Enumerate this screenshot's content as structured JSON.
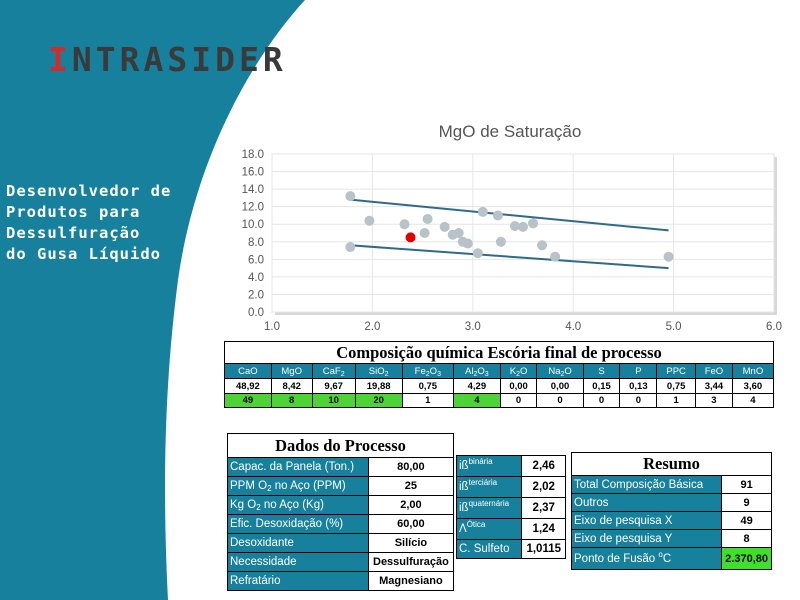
{
  "brand": {
    "first_letter": "I",
    "rest": "NTRASIDER"
  },
  "tagline": [
    "Desenvolvedor de",
    "Produtos para",
    "Dessulfuração",
    "do Gusa Líquido"
  ],
  "colors": {
    "teal": "#17819d",
    "brand_red": "#d42a2a",
    "highlight_green": "#4dd335",
    "point_gray": "#b7c3c9",
    "point_red": "#e00000",
    "line": "#2e6b8a"
  },
  "chart_data": {
    "type": "scatter",
    "title": "MgO de Saturação",
    "xlim": [
      1.0,
      6.0
    ],
    "ylim": [
      0.0,
      18.0
    ],
    "x_ticks": [
      "1.0",
      "2.0",
      "3.0",
      "4.0",
      "5.0",
      "6.0"
    ],
    "y_ticks": [
      "0.0",
      "2.0",
      "4.0",
      "6.0",
      "8.0",
      "10.0",
      "12.0",
      "14.0",
      "16.0",
      "18.0"
    ],
    "points": [
      [
        1.78,
        13.2
      ],
      [
        1.97,
        10.4
      ],
      [
        2.32,
        10.0
      ],
      [
        2.52,
        9.0
      ],
      [
        2.55,
        10.6
      ],
      [
        2.72,
        9.7
      ],
      [
        2.8,
        8.8
      ],
      [
        2.86,
        9.0
      ],
      [
        2.9,
        8.0
      ],
      [
        2.95,
        7.8
      ],
      [
        3.05,
        6.7
      ],
      [
        3.1,
        11.4
      ],
      [
        3.25,
        11.0
      ],
      [
        3.28,
        8.0
      ],
      [
        3.42,
        9.8
      ],
      [
        3.5,
        9.7
      ],
      [
        3.6,
        10.1
      ],
      [
        3.69,
        7.6
      ],
      [
        3.82,
        6.3
      ],
      [
        4.95,
        6.3
      ],
      [
        1.78,
        7.4
      ]
    ],
    "highlight_point": [
      2.38,
      8.5
    ],
    "lines": [
      {
        "from": [
          1.78,
          12.8
        ],
        "to": [
          4.95,
          9.3
        ]
      },
      {
        "from": [
          1.78,
          7.6
        ],
        "to": [
          4.95,
          5.0
        ]
      }
    ],
    "grid": true
  },
  "composition": {
    "title": "Composição química Escória final de processo",
    "headers": [
      {
        "base": "CaO",
        "sub": ""
      },
      {
        "base": "MgO",
        "sub": ""
      },
      {
        "base": "CaF",
        "sub": "2"
      },
      {
        "base": "SiO",
        "sub": "2"
      },
      {
        "base": "Fe",
        "sub": "2",
        "base2": "O",
        "sub2": "3"
      },
      {
        "base": "Al",
        "sub": "2",
        "base2": "O",
        "sub2": "3"
      },
      {
        "base": "K",
        "sub": "2",
        "base2": "O"
      },
      {
        "base": "Na",
        "sub": "2",
        "base2": "O"
      },
      {
        "base": "S",
        "sub": ""
      },
      {
        "base": "P",
        "sub": ""
      },
      {
        "base": "PPC",
        "sub": ""
      },
      {
        "base": "FeO",
        "sub": ""
      },
      {
        "base": "MnO",
        "sub": ""
      }
    ],
    "values": [
      "48,92",
      "8,42",
      "9,67",
      "19,88",
      "0,75",
      "4,29",
      "0,00",
      "0,00",
      "0,15",
      "0,13",
      "0,75",
      "3,44",
      "3,60"
    ],
    "rounded": [
      "49",
      "8",
      "10",
      "20",
      "1",
      "4",
      "0",
      "0",
      "0",
      "0",
      "1",
      "3",
      "4"
    ],
    "rounded_highlight": [
      true,
      true,
      true,
      true,
      false,
      true,
      false,
      false,
      false,
      false,
      false,
      false,
      false
    ]
  },
  "process": {
    "title": "Dados do Processo",
    "rows": [
      {
        "label": "Capac. da Panela (Ton.)",
        "value": "80,00"
      },
      {
        "label_pre": "PPM O",
        "label_sub": "2",
        "label_post": " no Aço (PPM)",
        "value": "25"
      },
      {
        "label_pre": "Kg O",
        "label_sub": "2",
        "label_post": " no Aço (Kg)",
        "value": "2,00"
      },
      {
        "label": "Efic. Desoxidação (%)",
        "value": "60,00"
      },
      {
        "label": "Desoxidante",
        "value": "Silício"
      },
      {
        "label": "Necessidade",
        "value": "Dessulfuração"
      },
      {
        "label": "Refratário",
        "value": "Magnesiano"
      }
    ]
  },
  "basicity": {
    "rows": [
      {
        "sym": "iß",
        "sup": "binária",
        "value": "2,46"
      },
      {
        "sym": "iß",
        "sup": "terciária",
        "value": "2,02"
      },
      {
        "sym": "iß",
        "sup": "quaternária",
        "value": "2,37"
      },
      {
        "sym": "Λ",
        "sup": "Ótica",
        "value": "1,24"
      },
      {
        "sym": "C. Sulfeto",
        "sup": "",
        "value": "1,0115"
      }
    ]
  },
  "resumo": {
    "title": "Resumo",
    "rows": [
      {
        "label": "Total Composição Básica",
        "value": "91"
      },
      {
        "label": "Outros",
        "value": "9"
      },
      {
        "label": "Eixo de pesquisa X",
        "value": "49"
      },
      {
        "label": "Eixo de pesquisa Y",
        "value": "8"
      }
    ],
    "melting": {
      "label_pre": "Ponto de Fusão ",
      "label_sup": "o",
      "label_post": "C",
      "value": "2.370,80"
    }
  }
}
